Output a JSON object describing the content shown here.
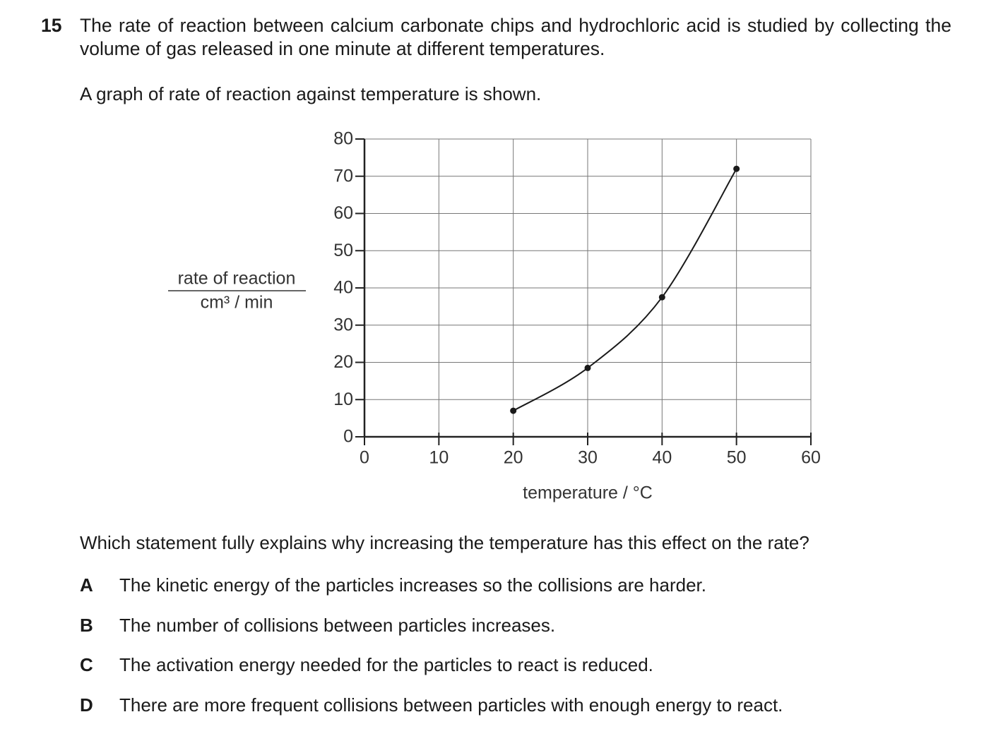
{
  "question": {
    "number": "15",
    "text": "The rate of reaction between calcium carbonate chips and hydrochloric acid is studied by collecting the volume of gas released in one minute at different temperatures.",
    "intro": "A graph of rate of reaction against temperature is shown."
  },
  "chart_data": {
    "type": "line",
    "x": [
      20,
      30,
      40,
      50
    ],
    "series": [
      {
        "color": "#1a1a1a",
        "values": [
          7,
          18.5,
          37.5,
          72
        ]
      }
    ],
    "xlabel": "temperature / °C",
    "ylabel": "rate of reaction",
    "yunit": "cm³ / min",
    "xlim": [
      0,
      60
    ],
    "xticks": [
      0,
      10,
      20,
      30,
      40,
      50,
      60
    ],
    "ylim": [
      0,
      80
    ],
    "yticks": [
      0,
      10,
      20,
      30,
      40,
      50,
      60,
      70,
      80
    ],
    "grid": true,
    "markers": true
  },
  "prompt": "Which statement fully explains why increasing the temperature has this effect on the rate?",
  "options": [
    {
      "letter": "A",
      "text": "The kinetic energy of the particles increases so the collisions are harder."
    },
    {
      "letter": "B",
      "text": "The number of collisions between particles increases."
    },
    {
      "letter": "C",
      "text": "The activation energy needed for the particles to react is reduced."
    },
    {
      "letter": "D",
      "text": "There are more frequent collisions between particles with enough energy to react."
    }
  ]
}
